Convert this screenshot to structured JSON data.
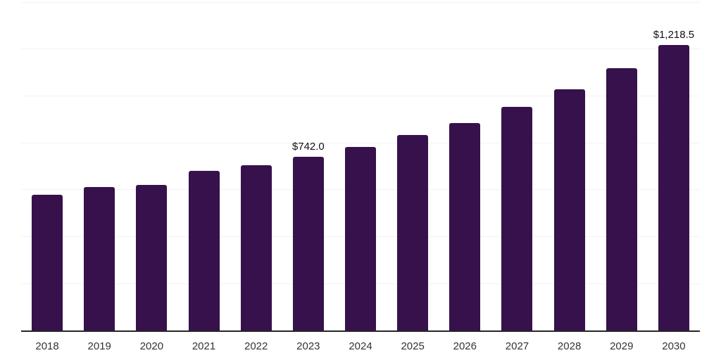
{
  "chart_data": {
    "type": "bar",
    "title": "",
    "xlabel": "",
    "ylabel": "",
    "categories": [
      "2018",
      "2019",
      "2020",
      "2021",
      "2022",
      "2023",
      "2024",
      "2025",
      "2026",
      "2027",
      "2028",
      "2029",
      "2030"
    ],
    "values": [
      580,
      613,
      622,
      681,
      706,
      742.0,
      782,
      832,
      885,
      953,
      1027,
      1117,
      1218.5
    ],
    "value_labels": [
      {
        "category": "2023",
        "text": "$742.0"
      },
      {
        "category": "2030",
        "text": "$1,218.5"
      }
    ],
    "ylim": [
      0,
      1400
    ],
    "gridline_step": 200,
    "grid": "horizontal-only",
    "legend": "none",
    "colors": {
      "bar": "#36114B",
      "axis": "#262626",
      "gridline": "#f2f2f2",
      "tick_label": "#333333",
      "value_label": "#111111",
      "background": "#ffffff"
    }
  }
}
